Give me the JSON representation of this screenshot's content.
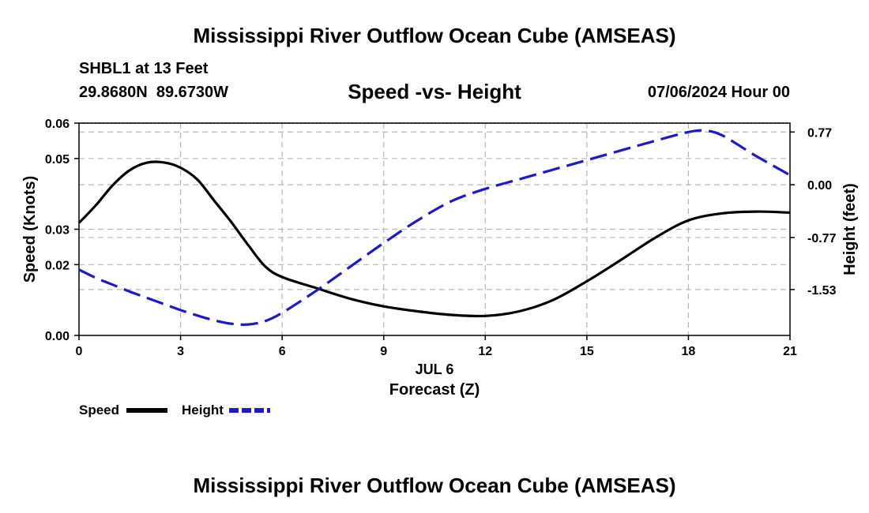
{
  "title": "Mississippi River Outflow Ocean Cube (AMSEAS)",
  "footer_title": "Mississippi River Outflow Ocean Cube (AMSEAS)",
  "station": {
    "line1": "SHBL1 at 13 Feet",
    "line2": "29.8680N  89.6730W"
  },
  "datetime": "07/06/2024 Hour 00",
  "chart_data": {
    "type": "line",
    "title": "Speed -vs- Height",
    "xlabel": "Forecast (Z)",
    "xlabel_date": "JUL 6",
    "ylabel": "Speed (Knots)",
    "ylabel_right": "Height (feet)",
    "xlim": [
      0,
      21
    ],
    "ylim": [
      0,
      0.06
    ],
    "ylim_right": [
      -2.2,
      0.9
    ],
    "x_ticks": [
      0,
      3,
      6,
      9,
      12,
      15,
      18,
      21
    ],
    "x_tick_labels": [
      "0",
      "3",
      "6",
      "9",
      "12",
      "15",
      "18",
      "21"
    ],
    "y_ticks": [
      0.0,
      0.02,
      0.03,
      0.05,
      0.06
    ],
    "y_tick_labels": [
      "0.00",
      "0.02",
      "0.03",
      "0.05",
      "0.06"
    ],
    "y_ticks_right": [
      0.77,
      0.0,
      -0.77,
      -1.53
    ],
    "y_tick_labels_right": [
      "0.77",
      "0.00",
      "-0.77",
      "-1.53"
    ],
    "grid": true,
    "series": [
      {
        "name": "Speed",
        "axis": "left",
        "color": "#000000",
        "dash": "solid",
        "x": [
          0,
          0.5,
          1,
          1.5,
          2,
          2.5,
          3,
          3.5,
          4,
          4.5,
          5,
          5.5,
          6,
          7,
          8,
          9,
          10,
          11,
          12,
          13,
          14,
          15,
          16,
          17,
          18,
          19,
          20,
          21
        ],
        "values": [
          0.0318,
          0.0368,
          0.0425,
          0.0467,
          0.0488,
          0.0489,
          0.0474,
          0.044,
          0.038,
          0.032,
          0.0255,
          0.0195,
          0.0165,
          0.0134,
          0.0104,
          0.0082,
          0.0068,
          0.0058,
          0.0055,
          0.0068,
          0.01,
          0.0153,
          0.0213,
          0.0275,
          0.0325,
          0.0345,
          0.035,
          0.0347
        ]
      },
      {
        "name": "Height",
        "axis": "right",
        "color": "#1a1acc",
        "dash": "dashed",
        "x": [
          0,
          0.5,
          1,
          1.5,
          2,
          2.5,
          3,
          3.5,
          4,
          4.5,
          5,
          5.5,
          6,
          7,
          8,
          9,
          10,
          11,
          12,
          13,
          14,
          15,
          16,
          17,
          18,
          18.5,
          19,
          20,
          21
        ],
        "values": [
          -1.24,
          -1.36,
          -1.46,
          -1.56,
          -1.65,
          -1.74,
          -1.83,
          -1.91,
          -1.98,
          -2.03,
          -2.04,
          -1.99,
          -1.87,
          -1.55,
          -1.2,
          -0.85,
          -0.52,
          -0.24,
          -0.06,
          0.08,
          0.22,
          0.36,
          0.5,
          0.64,
          0.77,
          0.79,
          0.72,
          0.42,
          0.14
        ]
      }
    ]
  }
}
